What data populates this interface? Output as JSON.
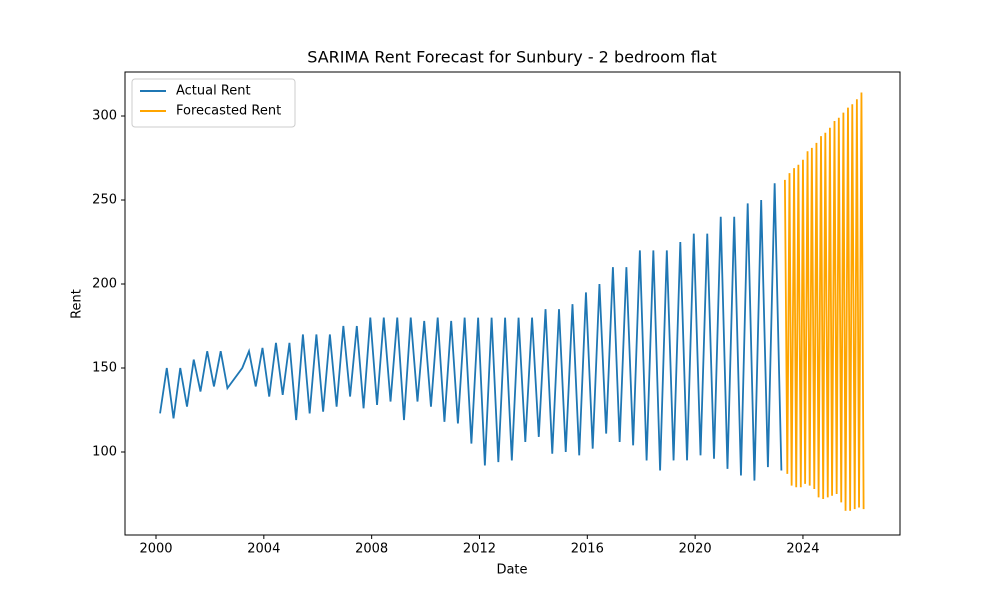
{
  "chart_data": {
    "type": "line",
    "title": "SARIMA Rent Forecast for Sunbury - 2 bedroom flat",
    "xlabel": "Date",
    "ylabel": "Rent",
    "xlim": [
      1998.85,
      2027.6
    ],
    "ylim": [
      50.6,
      326.2
    ],
    "xticks": [
      2000,
      2004,
      2008,
      2012,
      2016,
      2020,
      2024
    ],
    "yticks": [
      100,
      150,
      200,
      250,
      300
    ],
    "grid": false,
    "legend": "upper left",
    "series": [
      {
        "name": "Actual Rent",
        "color": "#1f77b4",
        "x": [
          2000.15,
          2000.4,
          2000.65,
          2000.9,
          2001.15,
          2001.4,
          2001.65,
          2001.9,
          2002.15,
          2002.4,
          2002.65,
          2003.2,
          2003.45,
          2003.7,
          2003.95,
          2004.2,
          2004.45,
          2004.7,
          2004.95,
          2005.2,
          2005.45,
          2005.7,
          2005.95,
          2006.2,
          2006.45,
          2006.7,
          2006.95,
          2007.2,
          2007.45,
          2007.7,
          2007.95,
          2008.2,
          2008.45,
          2008.7,
          2008.95,
          2009.2,
          2009.45,
          2009.7,
          2009.95,
          2010.2,
          2010.45,
          2010.7,
          2010.95,
          2011.2,
          2011.45,
          2011.7,
          2011.95,
          2012.2,
          2012.45,
          2012.7,
          2012.95,
          2013.2,
          2013.45,
          2013.7,
          2013.95,
          2014.2,
          2014.45,
          2014.7,
          2014.95,
          2015.2,
          2015.45,
          2015.7,
          2015.95,
          2016.2,
          2016.45,
          2016.7,
          2016.95,
          2017.2,
          2017.45,
          2017.7,
          2017.95,
          2018.2,
          2018.45,
          2018.7,
          2018.95,
          2019.2,
          2019.45,
          2019.7,
          2019.95,
          2020.2,
          2020.45,
          2020.7,
          2020.95,
          2021.2,
          2021.45,
          2021.7,
          2021.95,
          2022.2,
          2022.45,
          2022.7,
          2022.95,
          2023.2
        ],
        "values": [
          123,
          150,
          120,
          150,
          127,
          155,
          136,
          160,
          139,
          160,
          138,
          150,
          160,
          139,
          162,
          133,
          165,
          134,
          165,
          119,
          170,
          123,
          170,
          124,
          170,
          127,
          175,
          133,
          175,
          126,
          180,
          128,
          180,
          130,
          180,
          119,
          180,
          130,
          178,
          127,
          180,
          118,
          178,
          117,
          180,
          105,
          180,
          92,
          180,
          94,
          180,
          95,
          180,
          106,
          180,
          109,
          185,
          99,
          185,
          100,
          188,
          98,
          195,
          102,
          200,
          111,
          210,
          106,
          210,
          104,
          220,
          95,
          220,
          89,
          220,
          95,
          225,
          95,
          230,
          98,
          230,
          96,
          240,
          90,
          240,
          86,
          248,
          83,
          250,
          91,
          260,
          89
        ]
      },
      {
        "name": "Forecasted Rent",
        "color": "#ffa500",
        "x": [
          2023.33,
          2023.42,
          2023.5,
          2023.58,
          2023.67,
          2023.75,
          2023.83,
          2023.92,
          2024.0,
          2024.08,
          2024.17,
          2024.25,
          2024.33,
          2024.42,
          2024.5,
          2024.58,
          2024.67,
          2024.75,
          2024.83,
          2024.92,
          2025.0,
          2025.08,
          2025.17,
          2025.25,
          2025.33,
          2025.42,
          2025.5,
          2025.58,
          2025.67,
          2025.75,
          2025.83,
          2025.92,
          2026.0,
          2026.08,
          2026.17,
          2026.25
        ],
        "values": [
          262,
          87,
          266,
          80,
          269,
          79,
          271,
          79,
          274,
          81,
          279,
          80,
          281,
          78,
          284,
          73,
          288,
          72,
          290,
          73,
          293,
          74,
          297,
          75,
          299,
          70,
          302,
          65,
          305,
          65,
          307,
          66,
          310,
          67,
          314,
          66
        ]
      }
    ]
  }
}
